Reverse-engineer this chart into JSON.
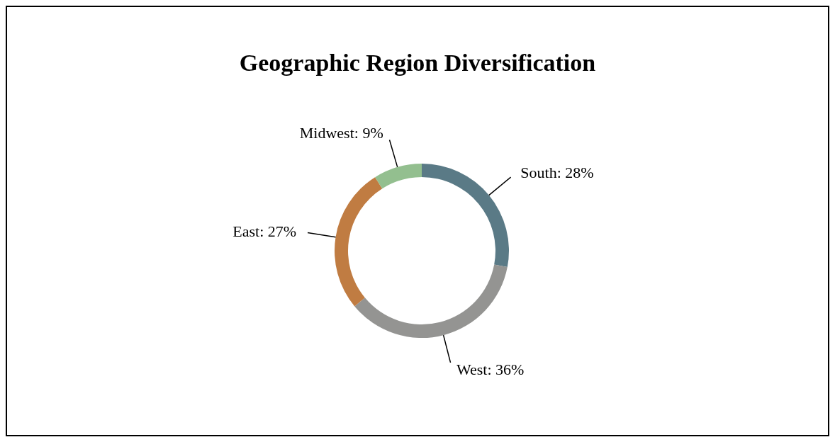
{
  "chart_data": {
    "type": "donut",
    "title": "Geographic Region Diversification",
    "categories": [
      "South",
      "West",
      "East",
      "Midwest"
    ],
    "values": [
      28,
      36,
      27,
      9
    ],
    "value_labels": [
      "28%",
      "36%",
      "27%",
      "9%"
    ],
    "colors": [
      "#5a7a86",
      "#949492",
      "#c07c42",
      "#93bf8f"
    ]
  }
}
